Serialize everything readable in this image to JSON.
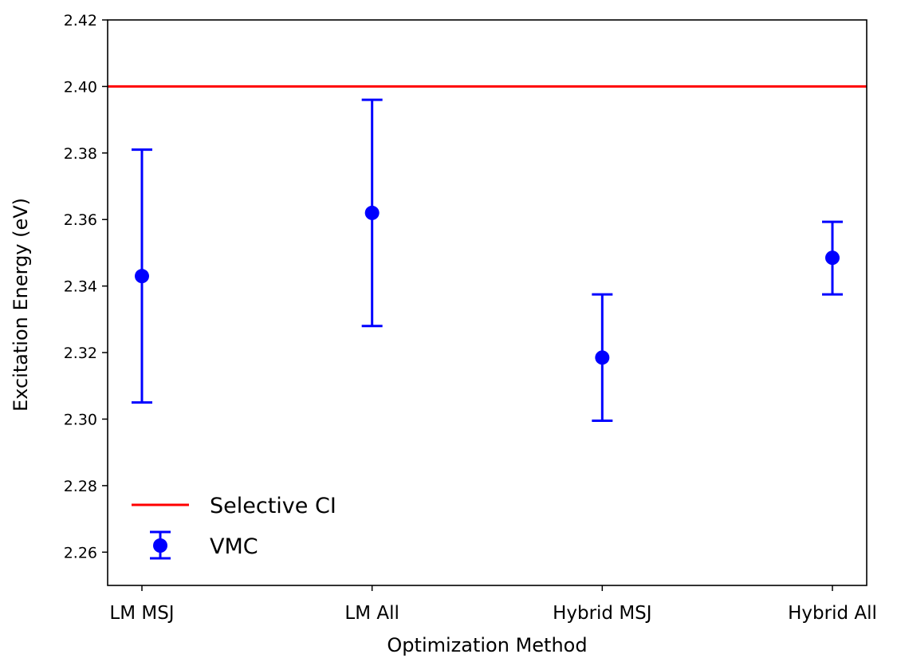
{
  "chart_data": {
    "type": "scatter",
    "xlabel": "Optimization Method",
    "ylabel": "Excitation Energy (eV)",
    "ylim": [
      2.25,
      2.42
    ],
    "yticks": [
      2.26,
      2.28,
      2.3,
      2.32,
      2.34,
      2.36,
      2.38,
      2.4,
      2.42
    ],
    "ytick_labels": [
      "2.26",
      "2.28",
      "2.30",
      "2.32",
      "2.34",
      "2.36",
      "2.38",
      "2.40",
      "2.42"
    ],
    "categories": [
      "LM MSJ",
      "LM All",
      "Hybrid MSJ",
      "Hybrid All"
    ],
    "grid": false,
    "legend_position": "lower-left",
    "reference_line": {
      "name": "Selective CI",
      "value": 2.4,
      "color": "#ff0000"
    },
    "series": [
      {
        "name": "VMC",
        "color": "#0000ff",
        "values": [
          2.343,
          2.362,
          2.3185,
          2.3485
        ],
        "lower": [
          2.305,
          2.328,
          2.2995,
          2.3375
        ],
        "upper": [
          2.381,
          2.396,
          2.3375,
          2.3593
        ]
      }
    ]
  }
}
